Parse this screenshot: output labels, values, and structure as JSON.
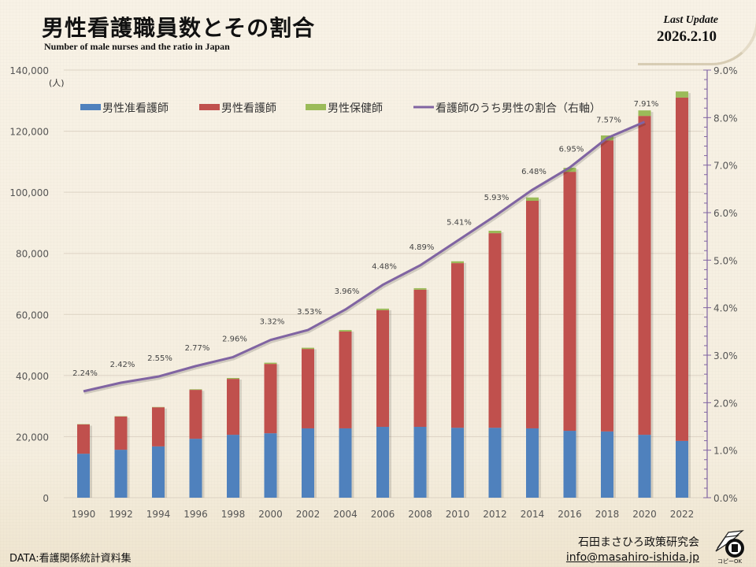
{
  "header": {
    "title": "男性看護職員数とその割合",
    "subtitle": "Number of male nurses and the ratio in Japan",
    "update_label": "Last Update",
    "update_date": "2026.2.10"
  },
  "footer": {
    "data_source": "DATA:看護関係統計資料集",
    "organization": "石田まさひろ政策研究会",
    "email": "info@masahiro-ishida.jp",
    "copy_ok": "コピーOK"
  },
  "colors": {
    "blue": "#4f81bd",
    "red": "#c0504d",
    "green": "#9bbb59",
    "purple": "#8064a2"
  },
  "chart_data": {
    "type": "bar",
    "stacked": true,
    "title": "男性看護職員数とその割合",
    "unit_label": "(人)",
    "categories": [
      "1990",
      "1992",
      "1994",
      "1996",
      "1998",
      "2000",
      "2002",
      "2004",
      "2006",
      "2008",
      "2010",
      "2012",
      "2014",
      "2016",
      "2018",
      "2020",
      "2022"
    ],
    "series": [
      {
        "name": "男性准看護師",
        "axis": "left",
        "type": "bar",
        "values": [
          14400,
          15700,
          16800,
          19300,
          20600,
          21100,
          22700,
          22700,
          23200,
          23200,
          22900,
          22900,
          22700,
          21900,
          21700,
          20600,
          18600
        ]
      },
      {
        "name": "男性看護師",
        "axis": "left",
        "type": "bar",
        "values": [
          9600,
          10900,
          12800,
          16000,
          18300,
          22700,
          26000,
          31700,
          38200,
          44900,
          53900,
          63700,
          74500,
          84800,
          95300,
          104400,
          112400
        ]
      },
      {
        "name": "男性保健師",
        "axis": "left",
        "type": "bar",
        "values": [
          100,
          100,
          100,
          200,
          300,
          400,
          400,
          500,
          500,
          500,
          600,
          800,
          1100,
          1300,
          1600,
          1800,
          2000
        ]
      },
      {
        "name": "看護師のうち男性の割合（右軸）",
        "axis": "right",
        "type": "line",
        "values": [
          2.24,
          2.42,
          2.55,
          2.77,
          2.96,
          3.32,
          3.53,
          3.96,
          4.48,
          4.89,
          5.41,
          5.93,
          6.48,
          6.95,
          7.57,
          7.91,
          null
        ],
        "labels": [
          "2.24%",
          "2.42%",
          "2.55%",
          "2.77%",
          "2.96%",
          "3.32%",
          "3.53%",
          "3.96%",
          "4.48%",
          "4.89%",
          "5.41%",
          "5.93%",
          "6.48%",
          "6.95%",
          "7.57%",
          "7.91%",
          ""
        ]
      }
    ],
    "left_axis": {
      "min": 0,
      "max": 140000,
      "ticks": [
        "0",
        "20,000",
        "40,000",
        "60,000",
        "80,000",
        "100,000",
        "120,000",
        "140,000"
      ]
    },
    "right_axis": {
      "min": 0,
      "max": 9,
      "ticks": [
        "0.0%",
        "1.0%",
        "2.0%",
        "3.0%",
        "4.0%",
        "5.0%",
        "6.0%",
        "7.0%",
        "8.0%",
        "9.0%"
      ]
    },
    "legend": [
      "男性准看護師",
      "男性看護師",
      "男性保健師",
      "看護師のうち男性の割合（右軸）"
    ],
    "legend_position": "top",
    "grid": true
  }
}
